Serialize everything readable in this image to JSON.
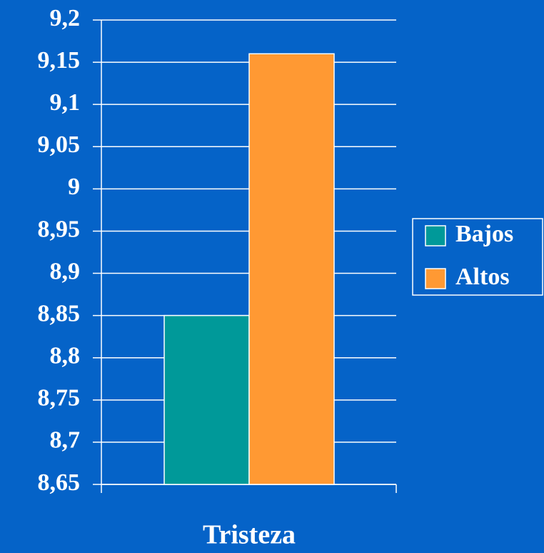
{
  "chart_data": {
    "type": "bar",
    "categories": [
      "Tristeza"
    ],
    "series": [
      {
        "name": "Bajos",
        "color": "#009999",
        "values": [
          8.85
        ]
      },
      {
        "name": "Altos",
        "color": "#ff9933",
        "values": [
          9.16
        ]
      }
    ],
    "ylim": [
      8.65,
      9.2
    ],
    "yticks": [
      {
        "value": 8.65,
        "label": "8,65"
      },
      {
        "value": 8.7,
        "label": "8,7"
      },
      {
        "value": 8.75,
        "label": "8,75"
      },
      {
        "value": 8.8,
        "label": "8,8"
      },
      {
        "value": 8.85,
        "label": "8,85"
      },
      {
        "value": 8.9,
        "label": "8,9"
      },
      {
        "value": 8.95,
        "label": "8,95"
      },
      9,
      {
        "value": 9.05,
        "label": "9,05"
      },
      {
        "value": 9.1,
        "label": "9,1"
      },
      {
        "value": 9.15,
        "label": "9,15"
      },
      {
        "value": 9.2,
        "label": "9,2"
      }
    ],
    "grid": true,
    "legend": "right"
  }
}
